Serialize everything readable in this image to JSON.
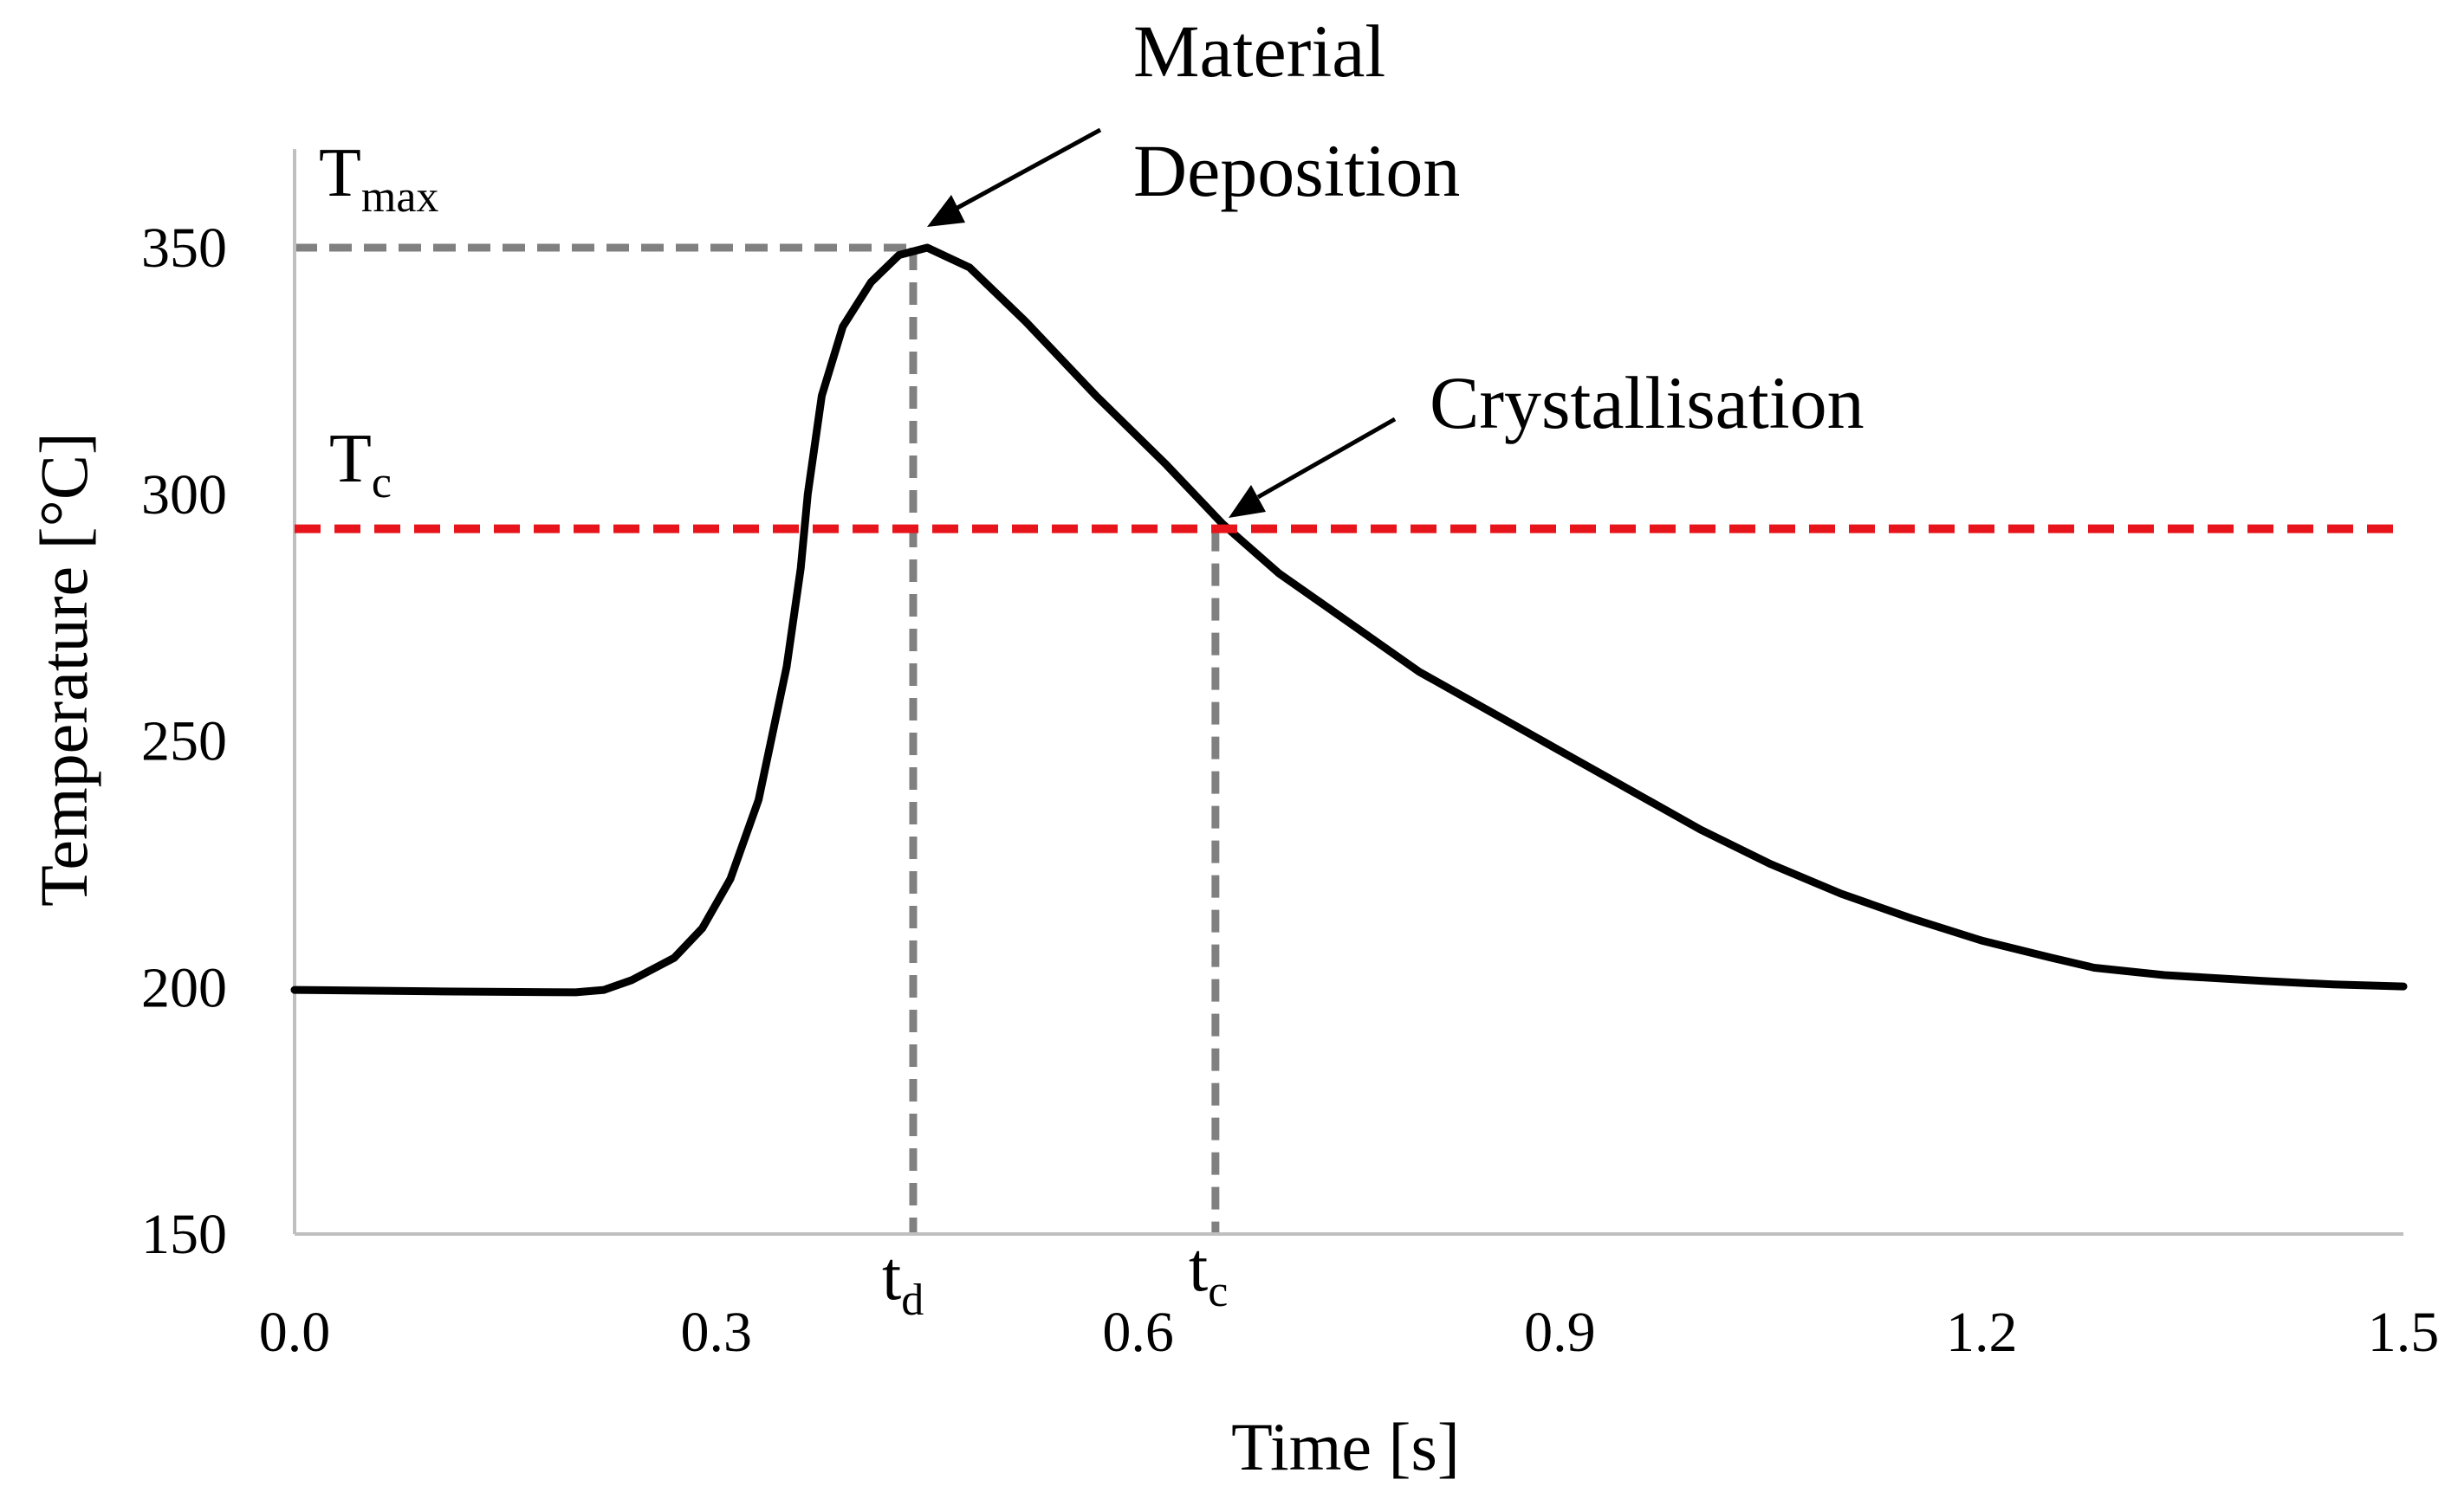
{
  "chart_data": {
    "type": "line",
    "xlabel": "Time [s]",
    "ylabel": "Temperature [°C]",
    "xlim": [
      0.0,
      1.5
    ],
    "ylim": [
      150,
      370
    ],
    "x_ticks": [
      "0.0",
      "0.3",
      "0.6",
      "0.9",
      "1.2",
      "1.5"
    ],
    "y_ticks": [
      "150",
      "200",
      "250",
      "300",
      "350"
    ],
    "grid": false,
    "series": [
      {
        "color": "#000000",
        "points": [
          [
            0.0,
            199.5
          ],
          [
            0.1,
            199.2
          ],
          [
            0.2,
            199.0
          ],
          [
            0.22,
            199.5
          ],
          [
            0.24,
            201.5
          ],
          [
            0.27,
            206.0
          ],
          [
            0.29,
            212.0
          ],
          [
            0.31,
            222.0
          ],
          [
            0.33,
            238.0
          ],
          [
            0.35,
            265.0
          ],
          [
            0.36,
            285.0
          ],
          [
            0.365,
            300.0
          ],
          [
            0.375,
            320.0
          ],
          [
            0.39,
            334.0
          ],
          [
            0.41,
            343.0
          ],
          [
            0.43,
            348.5
          ],
          [
            0.45,
            350.0
          ],
          [
            0.48,
            346.0
          ],
          [
            0.52,
            335.0
          ],
          [
            0.57,
            320.0
          ],
          [
            0.62,
            306.0
          ],
          [
            0.66,
            294.0
          ],
          [
            0.7,
            284.0
          ],
          [
            0.76,
            272.0
          ],
          [
            0.8,
            264.0
          ],
          [
            0.85,
            256.0
          ],
          [
            0.9,
            248.0
          ],
          [
            0.95,
            240.0
          ],
          [
            1.0,
            232.0
          ],
          [
            1.05,
            225.0
          ],
          [
            1.1,
            219.0
          ],
          [
            1.15,
            214.0
          ],
          [
            1.2,
            209.5
          ],
          [
            1.25,
            206.0
          ],
          [
            1.28,
            204.0
          ],
          [
            1.33,
            202.5
          ],
          [
            1.4,
            201.3
          ],
          [
            1.45,
            200.6
          ],
          [
            1.5,
            200.2
          ]
        ]
      }
    ],
    "reference_lines": {
      "t_max": {
        "value": 350,
        "color": "#808080",
        "base": "T",
        "sub": "max"
      },
      "t_c_temp": {
        "value": 293,
        "color": "#e8141b",
        "base": "T",
        "sub": "c"
      },
      "t_d": {
        "value": 0.44,
        "color": "#808080",
        "base": "t",
        "sub": "d"
      },
      "t_c": {
        "value": 0.655,
        "color": "#808080",
        "base": "t",
        "sub": "c"
      }
    },
    "annotations": {
      "material": {
        "lines": [
          "Material",
          "Deposition"
        ],
        "point": [
          0.45,
          350
        ]
      },
      "crystal": {
        "text": "Crystallisation",
        "point": [
          0.655,
          293
        ]
      }
    }
  }
}
